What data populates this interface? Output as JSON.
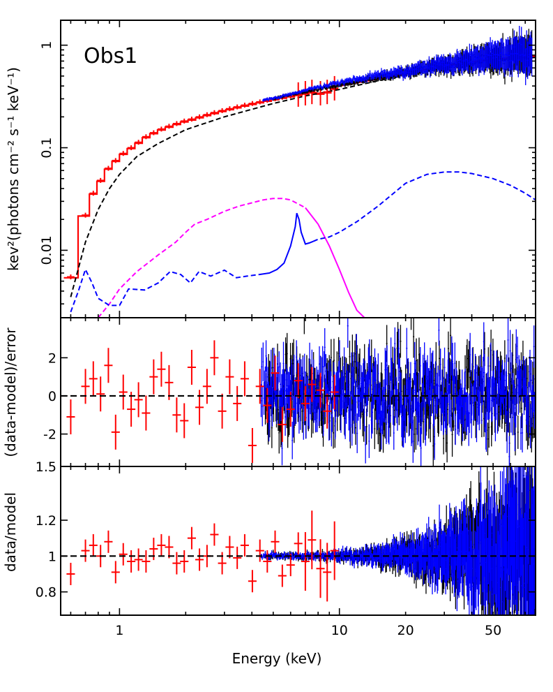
{
  "chart_data": [
    {
      "panel": "spectrum",
      "type": "line",
      "annotation": "Obs1",
      "ylabel": "kev²(photons cm⁻² s⁻¹ keV⁻¹)",
      "xscale": "log",
      "yscale": "log",
      "xlim": [
        0.54,
        78
      ],
      "ylim": [
        0.0022,
        1.75
      ],
      "yticks": [
        {
          "value": 0.01,
          "label": "0.01"
        },
        {
          "value": 0.1,
          "label": "0.1"
        },
        {
          "value": 1,
          "label": "1"
        }
      ],
      "series": [
        {
          "name": "total model",
          "style": "solid",
          "color": "#ff0000",
          "x": [
            0.6,
            0.8,
            1,
            1.5,
            2,
            3,
            5,
            7,
            10,
            15,
            20,
            30,
            50,
            78
          ],
          "y": [
            0.006,
            0.04,
            0.08,
            0.15,
            0.19,
            0.25,
            0.31,
            0.35,
            0.4,
            0.47,
            0.53,
            0.63,
            0.73,
            0.78
          ]
        },
        {
          "name": "continuum component",
          "style": "dashed",
          "color": "#000000",
          "x": [
            0.6,
            0.7,
            0.8,
            0.9,
            1,
            1.2,
            1.5,
            2,
            3,
            5,
            7,
            10,
            15,
            20,
            30,
            50,
            78
          ],
          "y": [
            0.0035,
            0.012,
            0.025,
            0.04,
            0.055,
            0.082,
            0.11,
            0.15,
            0.2,
            0.27,
            0.32,
            0.37,
            0.45,
            0.51,
            0.6,
            0.7,
            0.76
          ]
        },
        {
          "name": "soft component",
          "style": "dashed",
          "color": "#ff00ff",
          "x": [
            0.8,
            0.9,
            1,
            1.2,
            1.5,
            1.8,
            2,
            2.2,
            2.5,
            3,
            3.5,
            4,
            4.5,
            5,
            5.5,
            6,
            7
          ],
          "y": [
            0.0022,
            0.003,
            0.0042,
            0.0062,
            0.009,
            0.012,
            0.015,
            0.018,
            0.02,
            0.024,
            0.027,
            0.029,
            0.031,
            0.032,
            0.032,
            0.031,
            0.026
          ]
        },
        {
          "name": "soft component (tail)",
          "style": "solid",
          "color": "#ff00ff",
          "x": [
            7,
            8,
            9,
            10,
            11,
            12,
            13
          ],
          "y": [
            0.026,
            0.018,
            0.011,
            0.0065,
            0.0039,
            0.0026,
            0.0022
          ]
        },
        {
          "name": "reflection component",
          "style": "dashed",
          "color": "#0000ff",
          "x": [
            0.6,
            0.65,
            0.7,
            0.75,
            0.8,
            0.9,
            1,
            1.1,
            1.3,
            1.5,
            1.7,
            1.9,
            2.1,
            2.3,
            2.6,
            3,
            3.4,
            3.8,
            4.3
          ],
          "y": [
            0.0025,
            0.004,
            0.0065,
            0.0048,
            0.0034,
            0.0029,
            0.0029,
            0.0042,
            0.0041,
            0.0048,
            0.0062,
            0.0058,
            0.0048,
            0.0062,
            0.0056,
            0.0064,
            0.0054,
            0.0056,
            0.0058
          ]
        },
        {
          "name": "reflection component (Fe line)",
          "style": "solid",
          "color": "#0000ff",
          "x": [
            4.3,
            4.8,
            5.2,
            5.6,
            6,
            6.3,
            6.4,
            6.55,
            6.7,
            7,
            7.3,
            7.6
          ],
          "y": [
            0.0058,
            0.006,
            0.0065,
            0.0075,
            0.011,
            0.017,
            0.023,
            0.02,
            0.015,
            0.0115,
            0.0118,
            0.0122
          ]
        },
        {
          "name": "reflection component (hump)",
          "style": "dashed",
          "color": "#0000ff",
          "x": [
            7.6,
            8,
            9,
            10,
            11,
            12,
            15,
            20,
            25,
            30,
            35,
            40,
            50,
            60,
            70,
            78
          ],
          "y": [
            0.0122,
            0.0128,
            0.0135,
            0.015,
            0.017,
            0.019,
            0.027,
            0.045,
            0.055,
            0.058,
            0.058,
            0.056,
            0.05,
            0.043,
            0.036,
            0.031
          ]
        }
      ],
      "data_points": [
        {
          "instrument": "red",
          "color": "#ff0000",
          "x": [
            0.6,
            0.7,
            0.76,
            0.82,
            0.89,
            0.96,
            1.04,
            1.13,
            1.22,
            1.32,
            1.43,
            1.55,
            1.68,
            1.82,
            1.97,
            2.13,
            2.31,
            2.5,
            2.7,
            2.93,
            3.17,
            3.43,
            3.71,
            4.02,
            4.35,
            4.7,
            5.1,
            5.5,
            6,
            6.5,
            7,
            7.5,
            8.2,
            8.8,
            9.5
          ],
          "y": [
            0.0055,
            0.022,
            0.036,
            0.048,
            0.063,
            0.075,
            0.088,
            0.1,
            0.113,
            0.128,
            0.14,
            0.152,
            0.162,
            0.172,
            0.182,
            0.19,
            0.2,
            0.21,
            0.22,
            0.23,
            0.24,
            0.25,
            0.26,
            0.27,
            0.28,
            0.29,
            0.3,
            0.31,
            0.32,
            0.33,
            0.34,
            0.35,
            0.34,
            0.35,
            0.38
          ]
        },
        {
          "instrument": "black",
          "color": "#000000",
          "x": [
            5,
            6,
            7,
            8,
            9,
            10,
            12,
            14,
            16,
            18,
            20,
            23,
            26,
            30,
            35,
            40,
            45,
            50,
            55,
            60,
            65,
            70,
            75
          ],
          "y": [
            0.3,
            0.33,
            0.35,
            0.37,
            0.39,
            0.41,
            0.44,
            0.47,
            0.5,
            0.52,
            0.54,
            0.57,
            0.6,
            0.63,
            0.66,
            0.69,
            0.71,
            0.73,
            0.75,
            0.77,
            0.78,
            0.79,
            0.8
          ]
        },
        {
          "instrument": "blue",
          "color": "#0000ff",
          "x": [
            4.5,
            5.5,
            6.5,
            7.5,
            8.5,
            9.5,
            11,
            13,
            15,
            17,
            19,
            22,
            25,
            28,
            32,
            36,
            40,
            45,
            50,
            55,
            60,
            65,
            70,
            75
          ],
          "y": [
            0.29,
            0.32,
            0.35,
            0.38,
            0.4,
            0.42,
            0.45,
            0.48,
            0.51,
            0.53,
            0.55,
            0.58,
            0.61,
            0.64,
            0.67,
            0.69,
            0.72,
            0.74,
            0.77,
            0.79,
            0.8,
            0.82,
            0.83,
            0.86
          ]
        }
      ]
    },
    {
      "panel": "residuals",
      "type": "scatter",
      "ylabel": "(data-model)/error",
      "xscale": "log",
      "xlim": [
        0.54,
        78
      ],
      "ylim": [
        -3.7,
        4.1
      ],
      "reference_line": 0,
      "yticks": [
        {
          "value": -2,
          "label": "-2"
        },
        {
          "value": 0,
          "label": "0"
        },
        {
          "value": 2,
          "label": "2"
        }
      ],
      "red_points": {
        "x": [
          0.6,
          0.7,
          0.76,
          0.82,
          0.89,
          0.96,
          1.04,
          1.13,
          1.22,
          1.32,
          1.43,
          1.55,
          1.68,
          1.82,
          1.97,
          2.13,
          2.31,
          2.5,
          2.7,
          2.93,
          3.17,
          3.43,
          3.71,
          4.02,
          4.35,
          4.7,
          5.1,
          5.5,
          6,
          6.5,
          7,
          7.5,
          8.2,
          8.8,
          9.5
        ],
        "y": [
          -1.1,
          0.5,
          0.9,
          0.1,
          1.6,
          -1.9,
          0.2,
          -0.7,
          -0.2,
          -0.9,
          1.0,
          1.4,
          0.7,
          -1.0,
          -1.3,
          1.5,
          -0.6,
          0.5,
          2.0,
          -0.8,
          1.0,
          -0.4,
          0.9,
          -2.6,
          0.5,
          -0.5,
          1.2,
          -1.5,
          -0.7,
          0.8,
          -0.4,
          0.6,
          0.3,
          -0.8,
          0.2
        ]
      },
      "noise_seed": {
        "black": 7,
        "blue": 13
      },
      "noise_sigma": 1.1
    },
    {
      "panel": "ratio",
      "type": "scatter",
      "ylabel": "data/model",
      "xlabel": "Energy (keV)",
      "xscale": "log",
      "xlim": [
        0.54,
        78
      ],
      "ylim": [
        0.67,
        1.5
      ],
      "reference_line": 1,
      "yticks": [
        {
          "value": 0.8,
          "label": "0.8"
        },
        {
          "value": 1,
          "label": "1"
        },
        {
          "value": 1.2,
          "label": "1.2"
        },
        {
          "value": 1.5,
          "label": "1.5"
        }
      ],
      "xticks": [
        {
          "value": 1,
          "label": "1"
        },
        {
          "value": 10,
          "label": "10"
        },
        {
          "value": 20,
          "label": "20"
        },
        {
          "value": 50,
          "label": "50"
        }
      ],
      "red_points": {
        "x": [
          0.6,
          0.7,
          0.76,
          0.82,
          0.89,
          0.96,
          1.04,
          1.13,
          1.22,
          1.32,
          1.43,
          1.55,
          1.68,
          1.82,
          1.97,
          2.13,
          2.31,
          2.5,
          2.7,
          2.93,
          3.17,
          3.43,
          3.71,
          4.02,
          4.35,
          4.7,
          5.1,
          5.5,
          6,
          6.5,
          7,
          7.5,
          8.2,
          8.8,
          9.5
        ],
        "y": [
          0.9,
          1.03,
          1.06,
          1.0,
          1.08,
          0.91,
          1.01,
          0.97,
          0.98,
          0.97,
          1.04,
          1.06,
          1.05,
          0.96,
          0.97,
          1.1,
          0.98,
          1.0,
          1.12,
          0.96,
          1.05,
          0.99,
          1.06,
          0.86,
          1.03,
          0.97,
          1.08,
          0.89,
          0.95,
          1.07,
          0.97,
          1.09,
          0.93,
          0.91,
          1.03
        ]
      },
      "noise_seed": {
        "black": 29,
        "blue": 41
      }
    }
  ]
}
